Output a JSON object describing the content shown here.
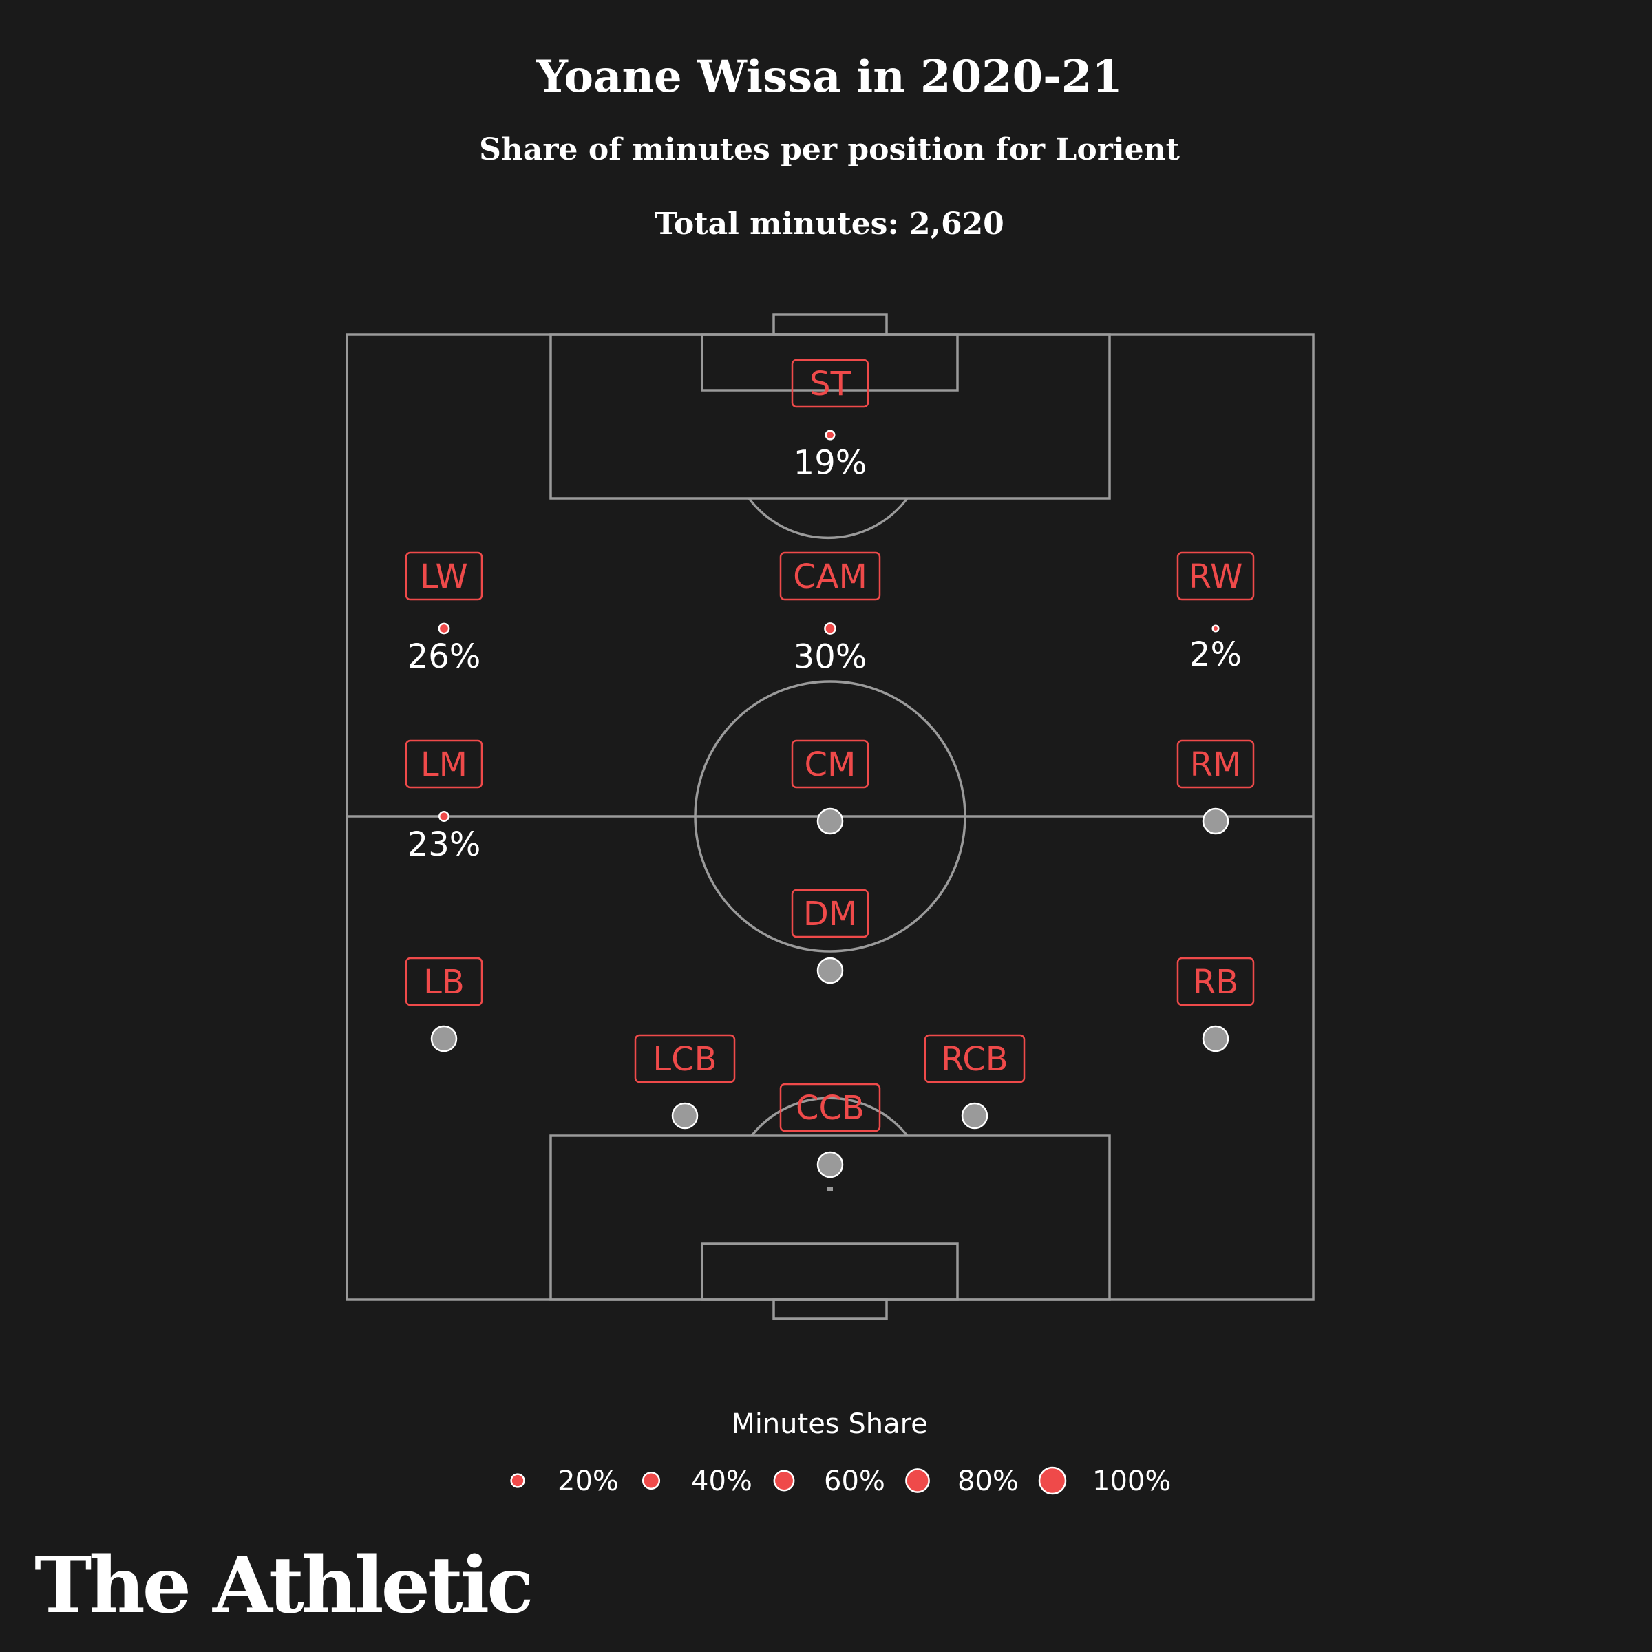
{
  "colors": {
    "background": "#1a1a1a",
    "accent": "#ef4a4a",
    "inactive": "#9a9a9a",
    "pitch": "#9a9a9a",
    "text": "#ffffff"
  },
  "header": {
    "title": "Yoane Wissa in 2020-21",
    "subtitle": "Share of minutes per position for Lorient",
    "total": "Total minutes: 2,620"
  },
  "chart_data": {
    "type": "scatter",
    "title": "Yoane Wissa in 2020-21",
    "subtitle": "Share of minutes per position for Lorient",
    "total_minutes": 2620,
    "value_unit": "percent",
    "positions": [
      {
        "code": "ST",
        "share": 19,
        "label": "19%"
      },
      {
        "code": "LW",
        "share": 26,
        "label": "26%"
      },
      {
        "code": "CAM",
        "share": 30,
        "label": "30%"
      },
      {
        "code": "RW",
        "share": 2,
        "label": "2%"
      },
      {
        "code": "LM",
        "share": 23,
        "label": "23%"
      },
      {
        "code": "CM",
        "share": 0,
        "label": ""
      },
      {
        "code": "RM",
        "share": 0,
        "label": ""
      },
      {
        "code": "DM",
        "share": 0,
        "label": ""
      },
      {
        "code": "LB",
        "share": 0,
        "label": ""
      },
      {
        "code": "RB",
        "share": 0,
        "label": ""
      },
      {
        "code": "LCB",
        "share": 0,
        "label": ""
      },
      {
        "code": "RCB",
        "share": 0,
        "label": ""
      },
      {
        "code": "CCB",
        "share": 0,
        "label": ""
      }
    ]
  },
  "legend": {
    "title": "Minutes Share",
    "items": [
      {
        "value": 20,
        "label": "20%"
      },
      {
        "value": 40,
        "label": "40%"
      },
      {
        "value": 60,
        "label": "60%"
      },
      {
        "value": 80,
        "label": "80%"
      },
      {
        "value": 100,
        "label": "100%"
      }
    ]
  },
  "brand": {
    "name": "The Athletic"
  }
}
